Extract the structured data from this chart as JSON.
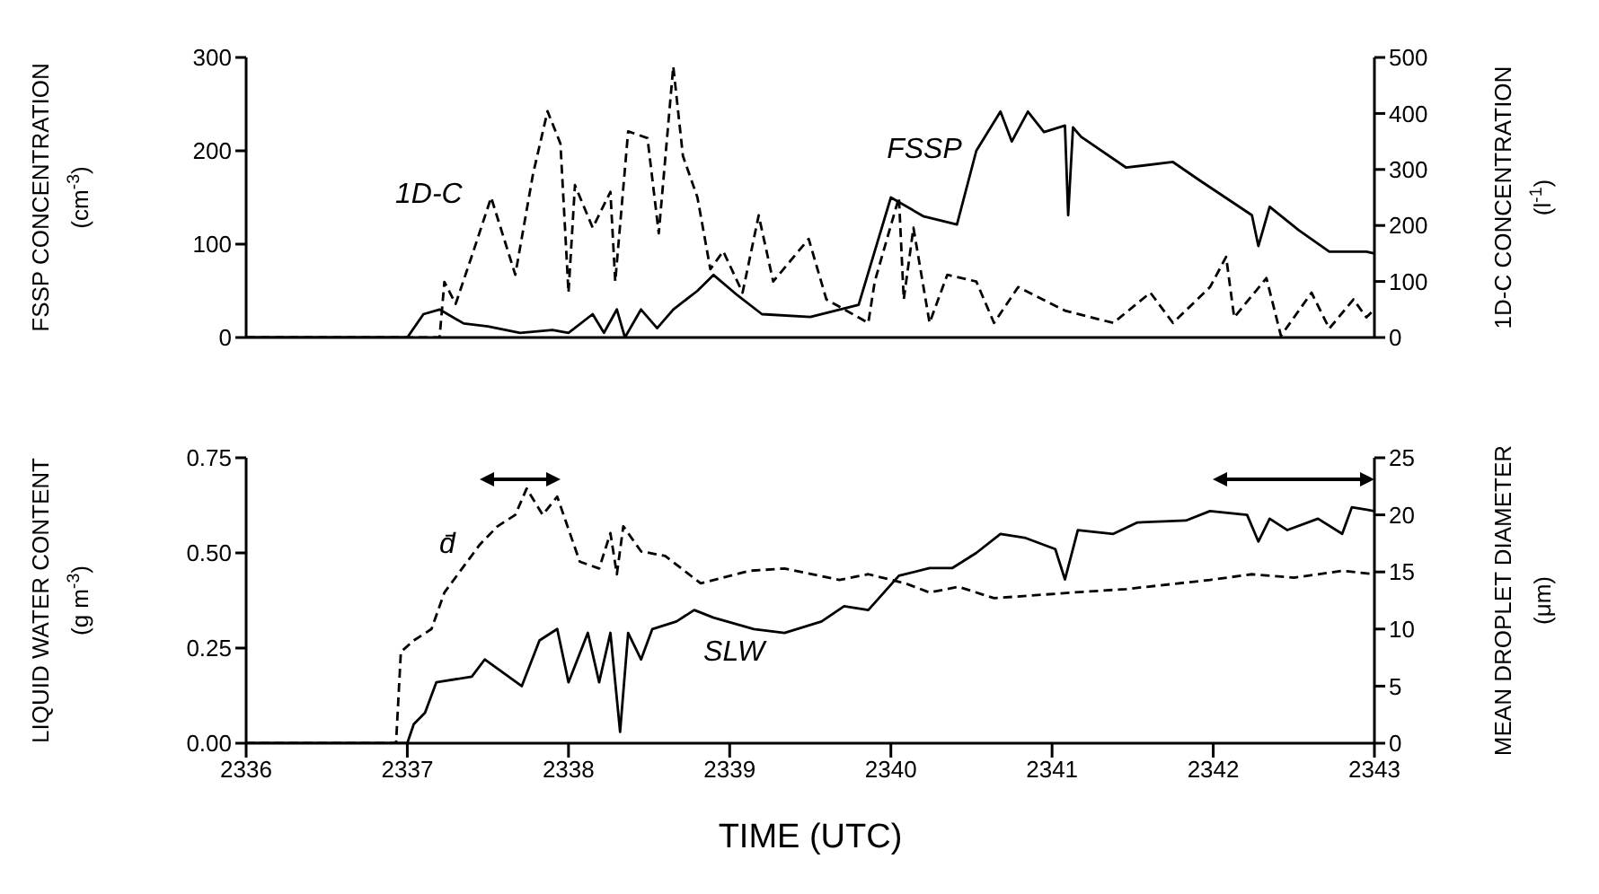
{
  "chart_data": [
    {
      "type": "line",
      "ylabel": "FSSP CONCENTRATION (cm$^{-3}$)",
      "y2label": "1D-C CONCENTRATION (l$^{-1}$)",
      "xlim": [
        2336,
        2343
      ],
      "xticks": [
        2336,
        2337,
        2338,
        2339,
        2340,
        2341,
        2342,
        2343
      ],
      "ylim": [
        0,
        300
      ],
      "yticks": [
        0,
        100,
        200,
        300
      ],
      "y2lim": [
        0,
        500
      ],
      "y2ticks": [
        0,
        100,
        200,
        300,
        400,
        500
      ],
      "tick_labels": "y",
      "marker": "none",
      "series": [
        {
          "name": "FSSP",
          "color": "#000000",
          "line_style": "solid",
          "x": [
            2336,
            2337.0,
            2337.1,
            2337.2,
            2337.35,
            2337.5,
            2337.7,
            2337.9,
            2338.0,
            2338.15,
            2338.22,
            2338.3,
            2338.35,
            2338.45,
            2338.55,
            2338.65,
            2338.8,
            2338.9,
            2339.05,
            2339.2,
            2339.5,
            2339.8,
            2340.0,
            2340.2,
            2340.41,
            2340.53,
            2340.68,
            2340.75,
            2340.85,
            2340.95,
            2341.08,
            2341.1,
            2341.13,
            2341.18,
            2341.46,
            2341.75,
            2341.91,
            2342.24,
            2342.28,
            2342.35,
            2342.53,
            2342.72,
            2342.95,
            2343
          ],
          "values": [
            0,
            0,
            25,
            30,
            15,
            12,
            5,
            8,
            5,
            25,
            5,
            30,
            0,
            30,
            10,
            30,
            50,
            67,
            45,
            25,
            22,
            35,
            150,
            130,
            121,
            200,
            242,
            210,
            242,
            220,
            227,
            131,
            225,
            215,
            182,
            188,
            169,
            131,
            98,
            140,
            115,
            92,
            92,
            90
          ]
        },
        {
          "name": "1D-C",
          "color": "#000000",
          "line_style": "dashed",
          "axis": "y2",
          "x": [
            2336,
            2337.2,
            2337.23,
            2337.3,
            2337.41,
            2337.52,
            2337.67,
            2337.78,
            2337.87,
            2337.95,
            2338.0,
            2338.04,
            2338.15,
            2338.26,
            2338.29,
            2338.37,
            2338.49,
            2338.56,
            2338.65,
            2338.71,
            2338.8,
            2338.88,
            2338.96,
            2339.08,
            2339.18,
            2339.27,
            2339.49,
            2339.6,
            2339.86,
            2339.9,
            2340.05,
            2340.08,
            2340.14,
            2340.24,
            2340.35,
            2340.53,
            2340.64,
            2340.79,
            2341.08,
            2341.38,
            2341.61,
            2341.75,
            2341.98,
            2342.08,
            2342.13,
            2342.33,
            2342.42,
            2342.61,
            2342.72,
            2342.87,
            2342.95,
            2343
          ],
          "values": [
            0,
            0,
            99,
            60,
            154,
            250,
            112,
            292,
            404,
            346,
            80,
            272,
            196,
            260,
            100,
            368,
            356,
            186,
            484,
            324,
            250,
            122,
            154,
            80,
            218,
            100,
            176,
            68,
            26,
            100,
            250,
            68,
            196,
            26,
            112,
            100,
            26,
            90,
            48,
            26,
            80,
            26,
            90,
            144,
            36,
            106,
            3,
            80,
            16,
            68,
            36,
            50
          ]
        }
      ]
    },
    {
      "type": "line",
      "xlabel": "TIME (UTC)",
      "ylabel": "LIQUID WATER CONTENT (g m$^{-3}$)",
      "y2label": "MEAN DROPLET DIAMETER (μm)",
      "xlim": [
        2336,
        2343
      ],
      "xticks": [
        2336,
        2337,
        2338,
        2339,
        2340,
        2341,
        2342,
        2343
      ],
      "ylim": [
        0,
        0.75
      ],
      "yticks": [
        {
          "value": 0,
          "label": "0.00"
        },
        {
          "value": 0.25,
          "label": "0.25"
        },
        {
          "value": 0.5,
          "label": "0.50"
        },
        {
          "value": 0.75,
          "label": "0.75"
        }
      ],
      "y2lim": [
        0,
        25
      ],
      "y2ticks": [
        0,
        5,
        10,
        15,
        20,
        25
      ],
      "marker": "none",
      "series": [
        {
          "name": "SLW",
          "color": "#000000",
          "line_style": "solid",
          "x": [
            2336,
            2337.0,
            2337.04,
            2337.11,
            2337.18,
            2337.4,
            2337.48,
            2337.71,
            2337.82,
            2337.93,
            2338.0,
            2338.12,
            2338.19,
            2338.26,
            2338.32,
            2338.37,
            2338.45,
            2338.52,
            2338.67,
            2338.78,
            2338.9,
            2339.15,
            2339.34,
            2339.57,
            2339.71,
            2339.86,
            2340.05,
            2340.24,
            2340.38,
            2340.53,
            2340.68,
            2340.83,
            2341.02,
            2341.08,
            2341.16,
            2341.38,
            2341.53,
            2341.83,
            2341.98,
            2342.21,
            2342.28,
            2342.35,
            2342.46,
            2342.65,
            2342.8,
            2342.86,
            2343
          ],
          "values": [
            0,
            0,
            0.05,
            0.08,
            0.16,
            0.175,
            0.22,
            0.15,
            0.27,
            0.3,
            0.16,
            0.29,
            0.16,
            0.29,
            0.03,
            0.29,
            0.22,
            0.3,
            0.32,
            0.35,
            0.33,
            0.3,
            0.29,
            0.32,
            0.36,
            0.35,
            0.44,
            0.46,
            0.46,
            0.5,
            0.55,
            0.54,
            0.51,
            0.43,
            0.56,
            0.55,
            0.58,
            0.585,
            0.61,
            0.6,
            0.53,
            0.59,
            0.56,
            0.59,
            0.55,
            0.62,
            0.61
          ]
        },
        {
          "name": "d̄",
          "color": "#000000",
          "line_style": "dashed",
          "axis": "y2",
          "x": [
            2336,
            2336.93,
            2336.96,
            2337.04,
            2337.15,
            2337.23,
            2337.34,
            2337.45,
            2337.56,
            2337.67,
            2337.74,
            2337.84,
            2337.93,
            2338.07,
            2338.19,
            2338.26,
            2338.3,
            2338.34,
            2338.45,
            2338.6,
            2338.82,
            2339.12,
            2339.34,
            2339.68,
            2339.86,
            2340.09,
            2340.24,
            2340.42,
            2340.64,
            2341.13,
            2341.46,
            2341.98,
            2342.24,
            2342.5,
            2342.8,
            2343
          ],
          "values": [
            0,
            0,
            8,
            9,
            10,
            13.2,
            15.3,
            17.4,
            19,
            20,
            22.3,
            20,
            21.6,
            15.9,
            15.3,
            18.4,
            14.8,
            19,
            16.8,
            16.4,
            14,
            15.1,
            15.3,
            14.3,
            14.8,
            14,
            13.2,
            13.7,
            12.7,
            13.2,
            13.5,
            14.3,
            14.8,
            14.5,
            15.1,
            14.8
          ]
        }
      ]
    }
  ]
}
